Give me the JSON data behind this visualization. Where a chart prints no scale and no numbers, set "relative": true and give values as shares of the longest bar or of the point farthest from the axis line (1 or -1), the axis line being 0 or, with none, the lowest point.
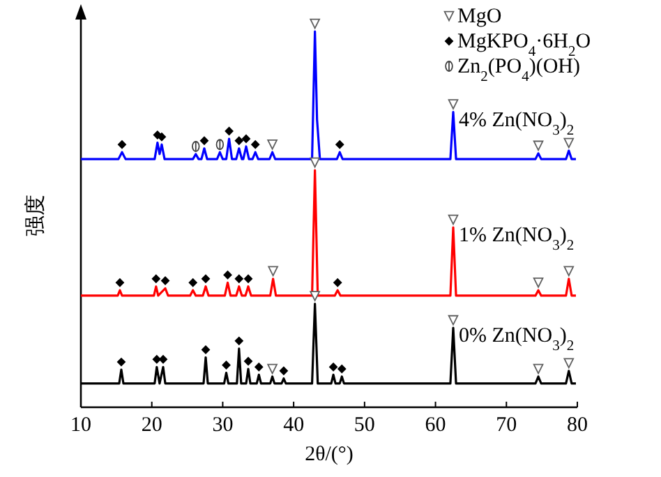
{
  "chart_data": {
    "type": "line",
    "relative": true,
    "xlabel": "2θ/(°)",
    "ylabel": "强度",
    "xlim": [
      10,
      80
    ],
    "xticks": [
      10,
      20,
      30,
      40,
      50,
      60,
      70,
      80
    ],
    "tick_labels": "x",
    "grid": false,
    "legend": "top right",
    "line_style": "solid",
    "series": [
      {
        "name": "4% Zn(NO$_{3}$)$_{2}$",
        "color": "#0000ff",
        "type": "line",
        "x": [
          10,
          15.3,
          15.8,
          16.3,
          20.4,
          20.8,
          21.1,
          21.4,
          21.8,
          25.8,
          26.2,
          26.6,
          27,
          27.4,
          27.8,
          29.2,
          29.6,
          30,
          30.5,
          30.9,
          31.3,
          31.9,
          32.3,
          32.7,
          32.9,
          33.3,
          33.7,
          34.2,
          34.6,
          35,
          36.6,
          37,
          37.4,
          42.6,
          43,
          43.3,
          43.7,
          46.1,
          46.5,
          46.9,
          62.1,
          62.5,
          62.9,
          74.1,
          74.5,
          74.9,
          78.4,
          78.8,
          79.2,
          79.8
        ],
        "values": [
          0.647,
          0.647,
          0.665,
          0.647,
          0.647,
          0.69,
          0.66,
          0.685,
          0.647,
          0.647,
          0.66,
          0.647,
          0.647,
          0.675,
          0.647,
          0.647,
          0.665,
          0.647,
          0.647,
          0.7,
          0.647,
          0.647,
          0.675,
          0.647,
          0.647,
          0.68,
          0.647,
          0.647,
          0.665,
          0.647,
          0.647,
          0.665,
          0.647,
          0.647,
          0.98,
          0.75,
          0.647,
          0.647,
          0.665,
          0.647,
          0.647,
          0.77,
          0.647,
          0.647,
          0.662,
          0.647,
          0.647,
          0.669,
          0.647,
          0.647
        ]
      },
      {
        "name": "1% Zn(NO$_{3}$)$_{2}$",
        "color": "#ff0000",
        "type": "line",
        "x": [
          10,
          15.2,
          15.5,
          15.8,
          20.3,
          20.6,
          20.9,
          21.9,
          22.3,
          25.4,
          25.8,
          26.2,
          27.2,
          27.6,
          28,
          30.3,
          30.7,
          31.1,
          31.9,
          32.3,
          32.7,
          33.2,
          33.6,
          34,
          36.7,
          37.1,
          37.5,
          42.6,
          43,
          43.4,
          45.8,
          46.2,
          46.6,
          62.1,
          62.5,
          62.9,
          74.1,
          74.5,
          74.9,
          78.4,
          78.8,
          79.2,
          79.8
        ],
        "values": [
          0.291,
          0.291,
          0.305,
          0.291,
          0.291,
          0.315,
          0.291,
          0.31,
          0.291,
          0.291,
          0.305,
          0.291,
          0.291,
          0.315,
          0.291,
          0.291,
          0.325,
          0.291,
          0.291,
          0.315,
          0.291,
          0.291,
          0.315,
          0.291,
          0.291,
          0.335,
          0.291,
          0.291,
          0.618,
          0.291,
          0.291,
          0.305,
          0.291,
          0.291,
          0.469,
          0.291,
          0.291,
          0.305,
          0.291,
          0.291,
          0.335,
          0.291,
          0.291
        ]
      },
      {
        "name": "0% Zn(NO$_{3}$)$_{2}$",
        "color": "#000000",
        "type": "line",
        "x": [
          10,
          15.4,
          15.7,
          16,
          20.4,
          20.7,
          21.1,
          21.6,
          21.9,
          27.3,
          27.6,
          27.9,
          30.2,
          30.5,
          30.8,
          32,
          32.3,
          32.6,
          33.3,
          33.6,
          33.9,
          34.8,
          35.1,
          35.4,
          36.7,
          37,
          37.3,
          38.3,
          38.6,
          38.9,
          42.6,
          43,
          43.4,
          45.3,
          45.6,
          45.9,
          46.5,
          46.8,
          47.1,
          62.1,
          62.5,
          62.9,
          74.1,
          74.5,
          74.9,
          78.4,
          78.8,
          79.2,
          79.8
        ],
        "values": [
          0.062,
          0.062,
          0.098,
          0.062,
          0.062,
          0.105,
          0.062,
          0.105,
          0.062,
          0.062,
          0.13,
          0.062,
          0.062,
          0.09,
          0.062,
          0.062,
          0.153,
          0.062,
          0.062,
          0.1,
          0.062,
          0.062,
          0.085,
          0.062,
          0.062,
          0.08,
          0.062,
          0.062,
          0.075,
          0.062,
          0.062,
          0.27,
          0.062,
          0.062,
          0.085,
          0.062,
          0.062,
          0.08,
          0.062,
          0.062,
          0.207,
          0.062,
          0.062,
          0.08,
          0.062,
          0.062,
          0.095,
          0.062,
          0.062
        ]
      },
      {
        "name": "MgO",
        "color": "#606060",
        "type": "scatter",
        "marker": "triangle",
        "x": [
          37,
          43,
          62.5,
          74.5,
          78.8,
          37.1,
          43,
          62.5,
          74.5,
          78.8,
          37,
          43,
          62.5,
          74.5,
          78.8
        ],
        "values": [
          0.685,
          1.0,
          0.79,
          0.682,
          0.689,
          0.355,
          0.638,
          0.489,
          0.325,
          0.355,
          0.1,
          0.29,
          0.227,
          0.1,
          0.115
        ]
      },
      {
        "name": "MgKPO$_{4}$·6H$_{2}$O",
        "color": "#000000",
        "type": "scatter",
        "marker": "diamond",
        "x": [
          15.8,
          20.8,
          21.4,
          27.4,
          30.9,
          32.3,
          33.3,
          34.6,
          46.5,
          15.5,
          20.6,
          21.9,
          25.8,
          27.6,
          30.7,
          32.3,
          33.6,
          46.2,
          15.7,
          20.7,
          21.6,
          27.6,
          30.5,
          32.3,
          33.6,
          35.1,
          38.6,
          45.6,
          46.8
        ],
        "values": [
          0.685,
          0.71,
          0.705,
          0.695,
          0.72,
          0.695,
          0.7,
          0.685,
          0.685,
          0.325,
          0.335,
          0.33,
          0.325,
          0.335,
          0.345,
          0.335,
          0.335,
          0.325,
          0.118,
          0.125,
          0.125,
          0.15,
          0.11,
          0.173,
          0.12,
          0.105,
          0.095,
          0.105,
          0.1
        ]
      },
      {
        "name": "Zn$_{2}$(PO$_{4}$)(OH)",
        "color": "#404040",
        "type": "scatter",
        "marker": "cross",
        "x": [
          26.2,
          29.6
        ],
        "values": [
          0.68,
          0.685
        ]
      }
    ]
  }
}
